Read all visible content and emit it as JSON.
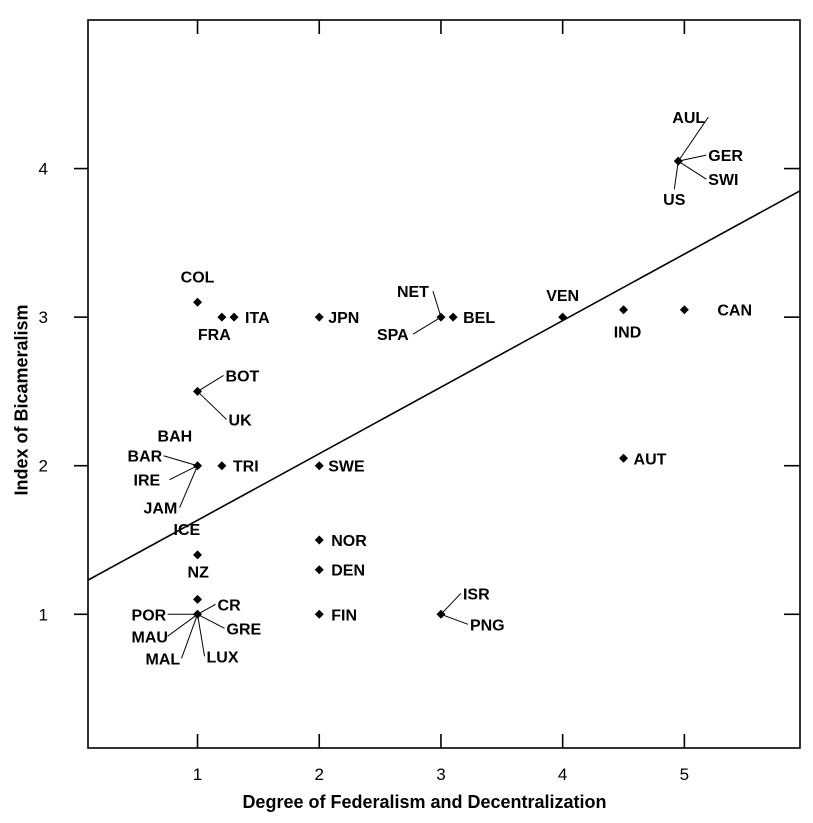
{
  "chart_data": {
    "type": "scatter",
    "title": "",
    "xlabel": "Degree of Federalism and Decentralization",
    "ylabel": "Index of Bicameralism",
    "xlim": [
      0.1,
      5.95
    ],
    "ylim": [
      0.1,
      5.0
    ],
    "xticks": [
      1,
      2,
      3,
      4,
      5
    ],
    "yticks": [
      1,
      2,
      3,
      4
    ],
    "grid": false,
    "legend": "none",
    "regression_line": {
      "x": [
        0.1,
        5.95
      ],
      "y": [
        1.23,
        3.85
      ]
    },
    "points": [
      {
        "label": "AUL",
        "x": 4.95,
        "y": 4.05
      },
      {
        "label": "GER",
        "x": 4.95,
        "y": 4.05
      },
      {
        "label": "SWI",
        "x": 4.95,
        "y": 4.05
      },
      {
        "label": "US",
        "x": 4.95,
        "y": 4.05
      },
      {
        "label": "COL",
        "x": 1.0,
        "y": 3.1
      },
      {
        "label": "FRA",
        "x": 1.2,
        "y": 3.0
      },
      {
        "label": "ITA",
        "x": 1.3,
        "y": 3.0
      },
      {
        "label": "JPN",
        "x": 2.0,
        "y": 3.0
      },
      {
        "label": "NET",
        "x": 3.0,
        "y": 3.0
      },
      {
        "label": "SPA",
        "x": 3.0,
        "y": 3.0
      },
      {
        "label": "BEL",
        "x": 3.1,
        "y": 3.0
      },
      {
        "label": "VEN",
        "x": 4.0,
        "y": 3.0
      },
      {
        "label": "IND",
        "x": 4.5,
        "y": 3.05
      },
      {
        "label": "CAN",
        "x": 5.0,
        "y": 3.05
      },
      {
        "label": "BOT",
        "x": 1.0,
        "y": 2.5
      },
      {
        "label": "UK",
        "x": 1.0,
        "y": 2.5
      },
      {
        "label": "BAH",
        "x": 1.0,
        "y": 2.0
      },
      {
        "label": "BAR",
        "x": 1.0,
        "y": 2.0
      },
      {
        "label": "IRE",
        "x": 1.0,
        "y": 2.0
      },
      {
        "label": "JAM",
        "x": 1.0,
        "y": 2.0
      },
      {
        "label": "TRI",
        "x": 1.2,
        "y": 2.0
      },
      {
        "label": "SWE",
        "x": 2.0,
        "y": 2.0
      },
      {
        "label": "AUT",
        "x": 4.5,
        "y": 2.05
      },
      {
        "label": "ICE",
        "x": 1.0,
        "y": 1.4
      },
      {
        "label": "NOR",
        "x": 2.0,
        "y": 1.5
      },
      {
        "label": "DEN",
        "x": 2.0,
        "y": 1.3
      },
      {
        "label": "NZ",
        "x": 1.0,
        "y": 1.1
      },
      {
        "label": "POR",
        "x": 1.0,
        "y": 1.0
      },
      {
        "label": "CR",
        "x": 1.0,
        "y": 1.0
      },
      {
        "label": "MAU",
        "x": 1.0,
        "y": 1.0
      },
      {
        "label": "GRE",
        "x": 1.0,
        "y": 1.0
      },
      {
        "label": "MAL",
        "x": 1.0,
        "y": 1.0
      },
      {
        "label": "LUX",
        "x": 1.0,
        "y": 1.0
      },
      {
        "label": "FIN",
        "x": 2.0,
        "y": 1.0
      },
      {
        "label": "ISR",
        "x": 3.0,
        "y": 1.0
      },
      {
        "label": "PNG",
        "x": 3.0,
        "y": 1.0
      }
    ]
  }
}
